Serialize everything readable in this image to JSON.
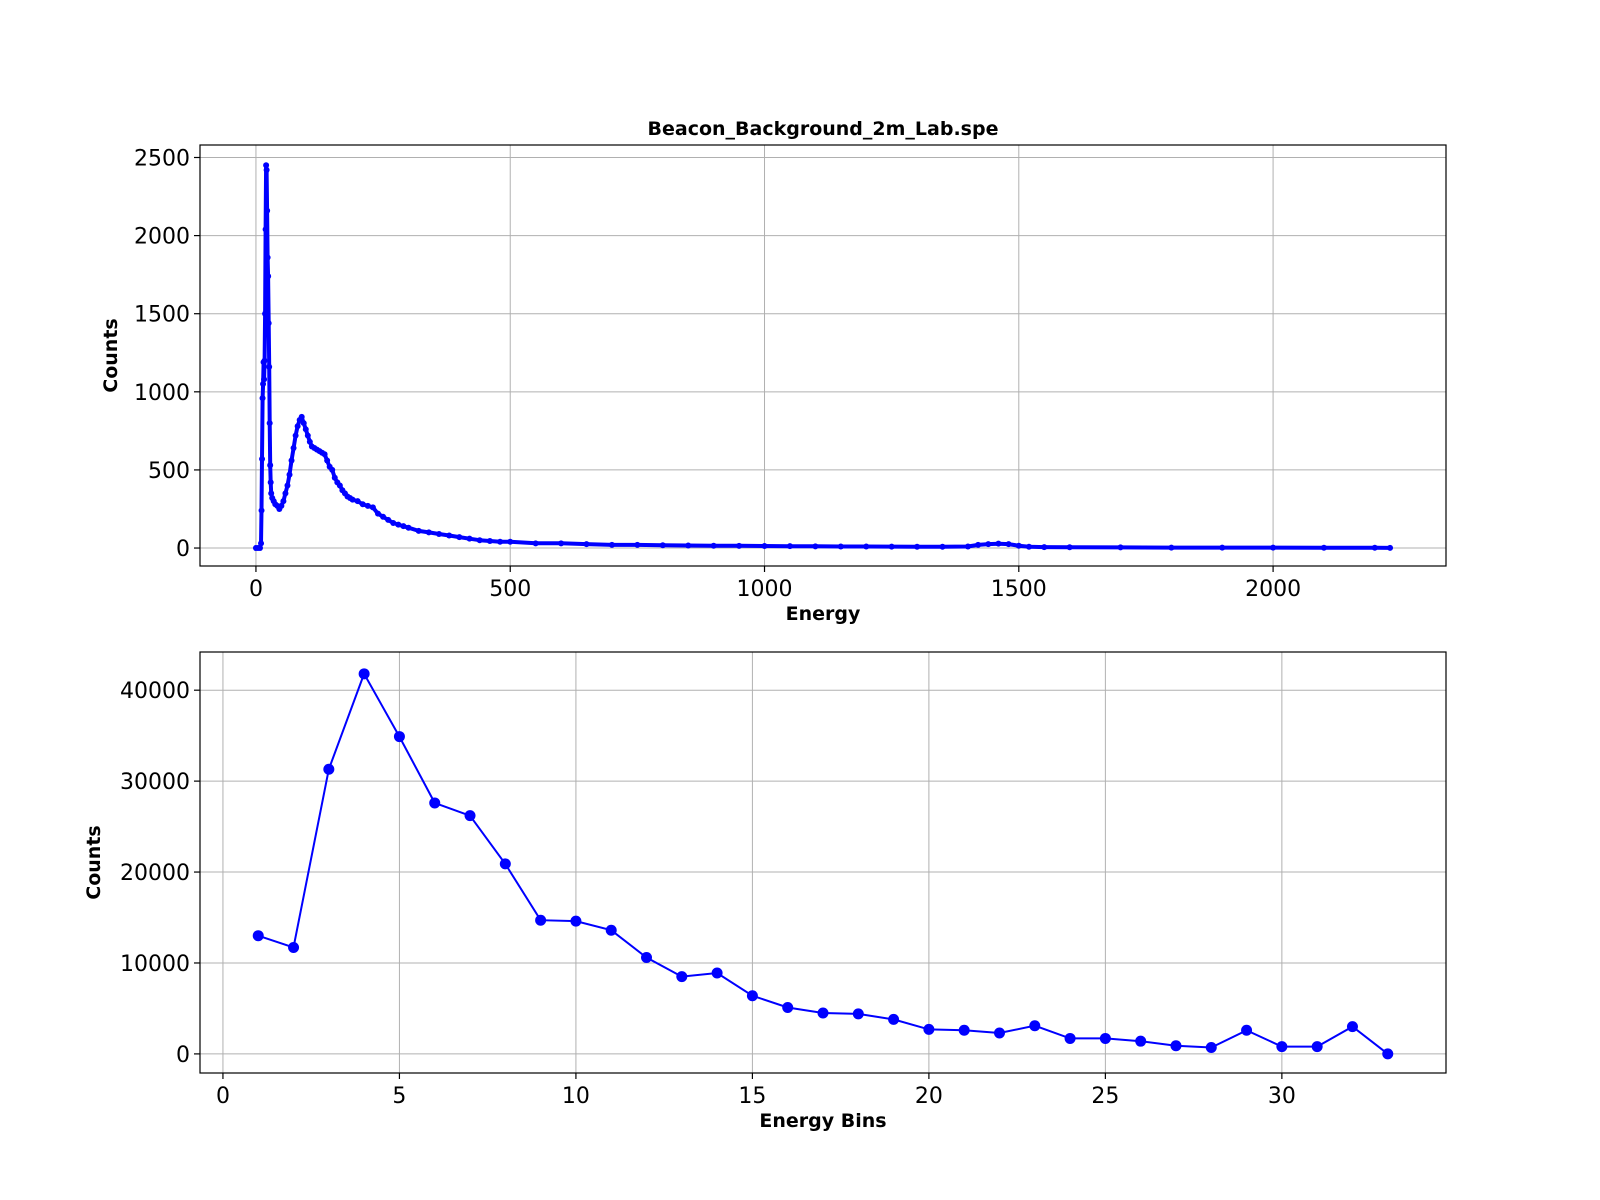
{
  "colors": {
    "series": "#0000ff",
    "grid": "#b0b0b0",
    "frame": "#000000"
  },
  "chart_data": [
    {
      "type": "scatter",
      "title": "Beacon_Background_2m_Lab.spe",
      "xlabel": "Energy",
      "ylabel": "Counts",
      "xlim": [
        -110,
        2340
      ],
      "ylim": [
        -115,
        2580
      ],
      "xticks": [
        0,
        500,
        1000,
        1500,
        2000
      ],
      "xtick_labels": [
        "0",
        "500",
        "1000",
        "1500",
        "2000"
      ],
      "yticks": [
        0,
        500,
        1000,
        1500,
        2000,
        2500
      ],
      "ytick_labels": [
        "0",
        "500",
        "1000",
        "1500",
        "2000",
        "2500"
      ],
      "grid": true,
      "series": [
        {
          "color": "#0000ff",
          "marker": "dot",
          "x": [
            0,
            4,
            8,
            10,
            11,
            12,
            13,
            14,
            15,
            16,
            17,
            18,
            19,
            20,
            21,
            22,
            23,
            24,
            25,
            26,
            27,
            28,
            29,
            30,
            32,
            35,
            38,
            42,
            46,
            50,
            54,
            58,
            62,
            66,
            70,
            74,
            78,
            82,
            86,
            90,
            94,
            98,
            102,
            106,
            110,
            115,
            120,
            125,
            130,
            135,
            140,
            145,
            150,
            155,
            160,
            165,
            170,
            175,
            180,
            185,
            190,
            200,
            210,
            220,
            230,
            240,
            250,
            260,
            270,
            280,
            290,
            300,
            320,
            340,
            360,
            380,
            400,
            420,
            440,
            460,
            480,
            500,
            550,
            600,
            650,
            700,
            750,
            800,
            850,
            900,
            950,
            1000,
            1050,
            1100,
            1150,
            1200,
            1250,
            1300,
            1350,
            1400,
            1420,
            1440,
            1460,
            1480,
            1500,
            1520,
            1550,
            1600,
            1700,
            1800,
            1900,
            2000,
            2100,
            2200,
            2230
          ],
          "y": [
            0,
            0,
            0,
            30,
            240,
            570,
            960,
            1050,
            1190,
            1080,
            1200,
            1500,
            2040,
            2450,
            2420,
            2160,
            1860,
            1740,
            1440,
            1160,
            800,
            530,
            420,
            350,
            320,
            300,
            280,
            270,
            250,
            270,
            300,
            350,
            400,
            470,
            560,
            640,
            720,
            780,
            820,
            840,
            800,
            760,
            720,
            680,
            650,
            640,
            630,
            620,
            610,
            600,
            560,
            520,
            500,
            450,
            420,
            400,
            370,
            350,
            330,
            320,
            310,
            300,
            280,
            270,
            260,
            220,
            200,
            180,
            160,
            150,
            140,
            130,
            110,
            100,
            90,
            80,
            70,
            60,
            50,
            45,
            40,
            40,
            30,
            30,
            25,
            20,
            20,
            18,
            16,
            15,
            14,
            13,
            12,
            11,
            10,
            10,
            9,
            8,
            8,
            10,
            20,
            25,
            28,
            25,
            15,
            8,
            6,
            5,
            4,
            3,
            3,
            3,
            2,
            2,
            1
          ]
        }
      ]
    },
    {
      "type": "line",
      "title": "",
      "xlabel": "Energy Bins",
      "ylabel": "Counts",
      "xlim": [
        -0.65,
        34.65
      ],
      "ylim": [
        -2100,
        44200
      ],
      "xticks": [
        0,
        5,
        10,
        15,
        20,
        25,
        30
      ],
      "xtick_labels": [
        "0",
        "5",
        "10",
        "15",
        "20",
        "25",
        "30"
      ],
      "yticks": [
        0,
        10000,
        20000,
        30000,
        40000
      ],
      "ytick_labels": [
        "0",
        "10000",
        "20000",
        "30000",
        "40000"
      ],
      "grid": true,
      "series": [
        {
          "color": "#0000ff",
          "marker": "circle",
          "x": [
            1,
            2,
            3,
            4,
            5,
            6,
            7,
            8,
            9,
            10,
            11,
            12,
            13,
            14,
            15,
            16,
            17,
            18,
            19,
            20,
            21,
            22,
            23,
            24,
            25,
            26,
            27,
            28,
            29,
            30,
            31,
            32,
            33
          ],
          "y": [
            13000,
            11700,
            31300,
            41800,
            34900,
            27600,
            26200,
            20900,
            14700,
            14600,
            13600,
            10600,
            8500,
            8900,
            6400,
            5100,
            4500,
            4400,
            3800,
            2700,
            2600,
            2300,
            3100,
            1700,
            1700,
            1400,
            900,
            700,
            2600,
            800,
            800,
            3000,
            0
          ]
        }
      ]
    }
  ]
}
